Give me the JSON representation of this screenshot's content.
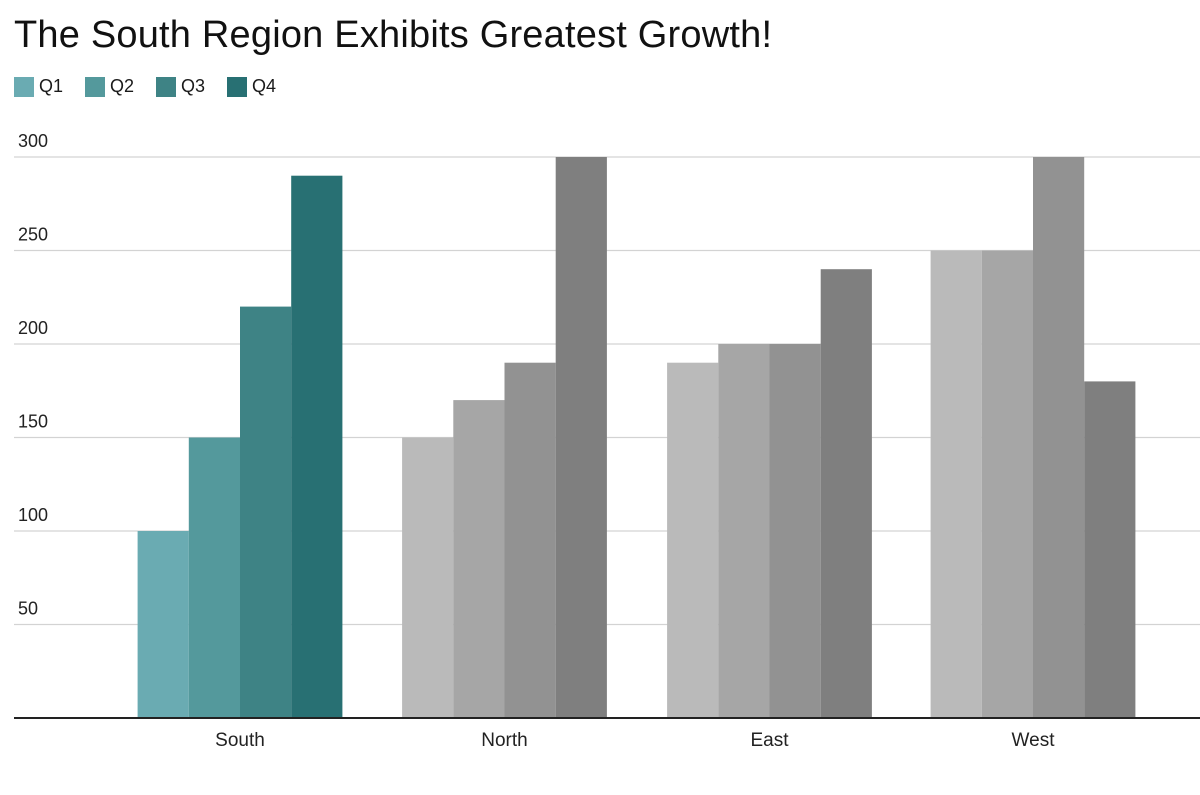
{
  "chart_data": {
    "type": "bar",
    "title": "The South Region Exhibits Greatest Growth!",
    "categories": [
      "South",
      "North",
      "East",
      "West"
    ],
    "series": [
      {
        "name": "Q1",
        "values": [
          100,
          150,
          190,
          250
        ]
      },
      {
        "name": "Q2",
        "values": [
          150,
          170,
          200,
          250
        ]
      },
      {
        "name": "Q3",
        "values": [
          220,
          190,
          200,
          300
        ]
      },
      {
        "name": "Q4",
        "values": [
          290,
          300,
          240,
          180
        ]
      }
    ],
    "yticks": [
      50,
      100,
      150,
      200,
      250,
      300
    ],
    "ylim": [
      0,
      300
    ],
    "xlabel": "",
    "ylabel": "",
    "grid": true,
    "legend_position": "top-left",
    "highlight_category": "South",
    "colors": {
      "highlight": [
        "#6aabb2",
        "#54999c",
        "#3e8385",
        "#287073"
      ],
      "muted": [
        "#bababa",
        "#a6a6a6",
        "#929292",
        "#7f7f7f"
      ],
      "legend": [
        "#6aabb2",
        "#54999c",
        "#3e8385",
        "#287073"
      ],
      "grid": "#d3d3d3",
      "axis": "#222222"
    }
  }
}
